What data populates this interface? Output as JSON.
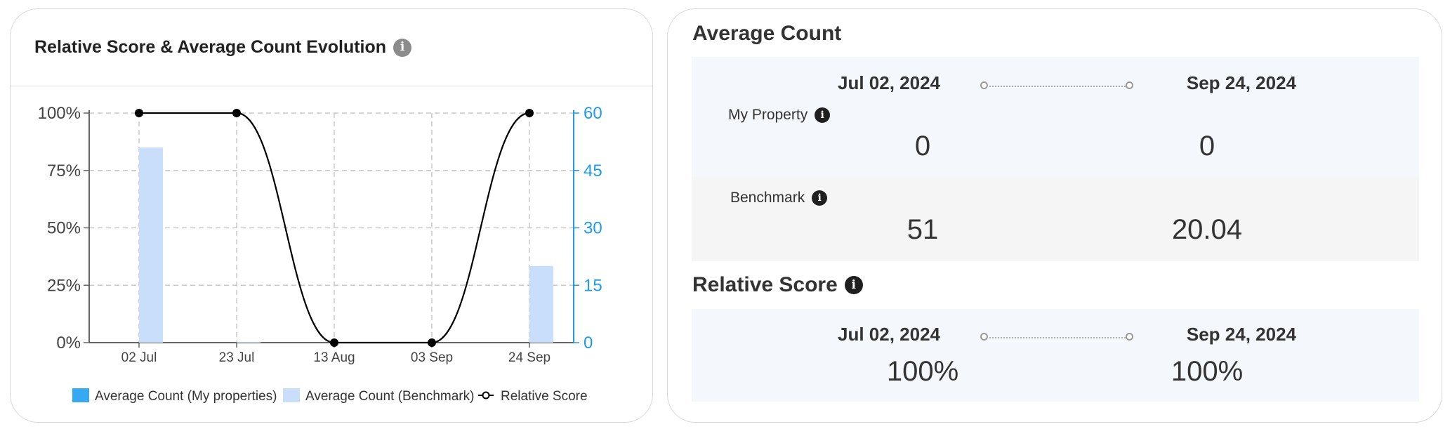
{
  "left_card": {
    "title": "Relative Score & Average Count Evolution",
    "info_icon": "info-icon"
  },
  "chart_data": {
    "type": "bar",
    "categories": [
      "02 Jul",
      "23 Jul",
      "13 Aug",
      "03 Sep",
      "24 Sep"
    ],
    "series": [
      {
        "name": "Average Count (My properties)",
        "kind": "bar",
        "axis": "right",
        "values": [
          0,
          0,
          0,
          0,
          0
        ],
        "color": "#36a9f3"
      },
      {
        "name": "Average Count (Benchmark)",
        "kind": "bar",
        "axis": "right",
        "values": [
          51,
          0.2,
          0,
          0,
          20.04
        ],
        "color": "#c9defa"
      },
      {
        "name": "Relative Score",
        "kind": "line",
        "axis": "left",
        "values": [
          100,
          100,
          0,
          0,
          100
        ],
        "color": "#000000"
      }
    ],
    "y_left": {
      "ticks": [
        "0%",
        "25%",
        "50%",
        "75%",
        "100%"
      ],
      "ylim": [
        0,
        100
      ]
    },
    "y_right": {
      "ticks": [
        "0",
        "15",
        "30",
        "45",
        "60"
      ],
      "ylim": [
        0,
        60
      ],
      "color": "#1e9be9"
    },
    "grid": true,
    "legend_position": "bottom"
  },
  "right_card": {
    "average_count": {
      "title": "Average Count",
      "start_date": "Jul 02, 2024",
      "end_date": "Sep 24, 2024",
      "my_property": {
        "label": "My Property",
        "start": "0",
        "end": "0"
      },
      "benchmark": {
        "label": "Benchmark",
        "start": "51",
        "end": "20.04"
      }
    },
    "relative_score": {
      "title": "Relative Score",
      "start_date": "Jul 02, 2024",
      "end_date": "Sep 24, 2024",
      "start": "100%",
      "end": "100%"
    }
  }
}
